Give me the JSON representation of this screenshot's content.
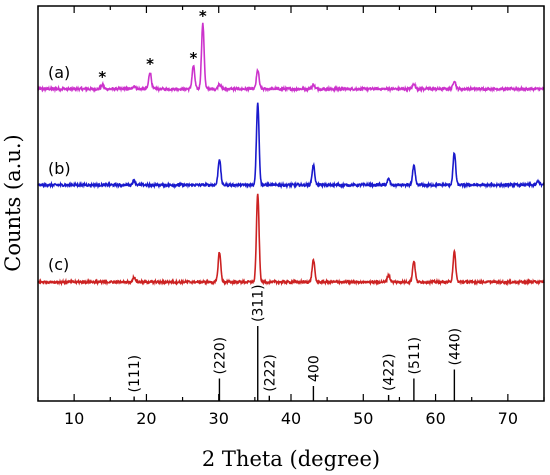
{
  "chart_data": {
    "type": "line",
    "xlabel": "2 Theta (degree)",
    "ylabel": "Counts (a.u.)",
    "xlim": [
      5,
      75
    ],
    "x_ticks": [
      10,
      20,
      30,
      40,
      50,
      60,
      70
    ],
    "y_ticks": false,
    "grid": false,
    "series": [
      {
        "name": "(a)",
        "color": "#cc33cc",
        "baseline": 1.0,
        "peaks": [
          [
            13.9,
            0.04
          ],
          [
            18.3,
            0.03
          ],
          [
            20.5,
            0.16
          ],
          [
            26.5,
            0.22
          ],
          [
            27.8,
            0.62
          ],
          [
            30.1,
            0.05
          ],
          [
            35.4,
            0.18
          ],
          [
            43.1,
            0.04
          ],
          [
            57.0,
            0.05
          ],
          [
            62.6,
            0.08
          ]
        ]
      },
      {
        "name": "(b)",
        "color": "#1a1acc",
        "baseline": 1.0,
        "peaks": [
          [
            18.3,
            0.05
          ],
          [
            30.1,
            0.26
          ],
          [
            35.4,
            0.82
          ],
          [
            43.1,
            0.2
          ],
          [
            53.5,
            0.06
          ],
          [
            57.0,
            0.19
          ],
          [
            62.6,
            0.32
          ],
          [
            74.2,
            0.04
          ]
        ]
      },
      {
        "name": "(c)",
        "color": "#cc2222",
        "baseline": 1.0,
        "peaks": [
          [
            18.3,
            0.05
          ],
          [
            30.1,
            0.3
          ],
          [
            35.4,
            0.88
          ],
          [
            43.1,
            0.22
          ],
          [
            53.5,
            0.07
          ],
          [
            57.0,
            0.21
          ],
          [
            62.6,
            0.3
          ]
        ]
      }
    ],
    "reference_lines": [
      {
        "hkl": "(111)",
        "x": 18.3,
        "intensity": 0.06
      },
      {
        "hkl": "(220)",
        "x": 30.1,
        "intensity": 0.3
      },
      {
        "hkl": "(311)",
        "x": 35.4,
        "intensity": 1.0
      },
      {
        "hkl": "(222)",
        "x": 37.0,
        "intensity": 0.07
      },
      {
        "hkl": "400",
        "x": 43.1,
        "intensity": 0.2
      },
      {
        "hkl": "(422)",
        "x": 53.5,
        "intensity": 0.08
      },
      {
        "hkl": "(511)",
        "x": 57.0,
        "intensity": 0.3
      },
      {
        "hkl": "(440)",
        "x": 62.6,
        "intensity": 0.42
      }
    ],
    "annotations": [
      {
        "text": "*",
        "x": 13.9,
        "series": "(a)"
      },
      {
        "text": "*",
        "x": 20.5,
        "series": "(a)"
      },
      {
        "text": "*",
        "x": 26.5,
        "series": "(a)"
      },
      {
        "text": "*",
        "x": 27.8,
        "series": "(a)"
      }
    ]
  }
}
